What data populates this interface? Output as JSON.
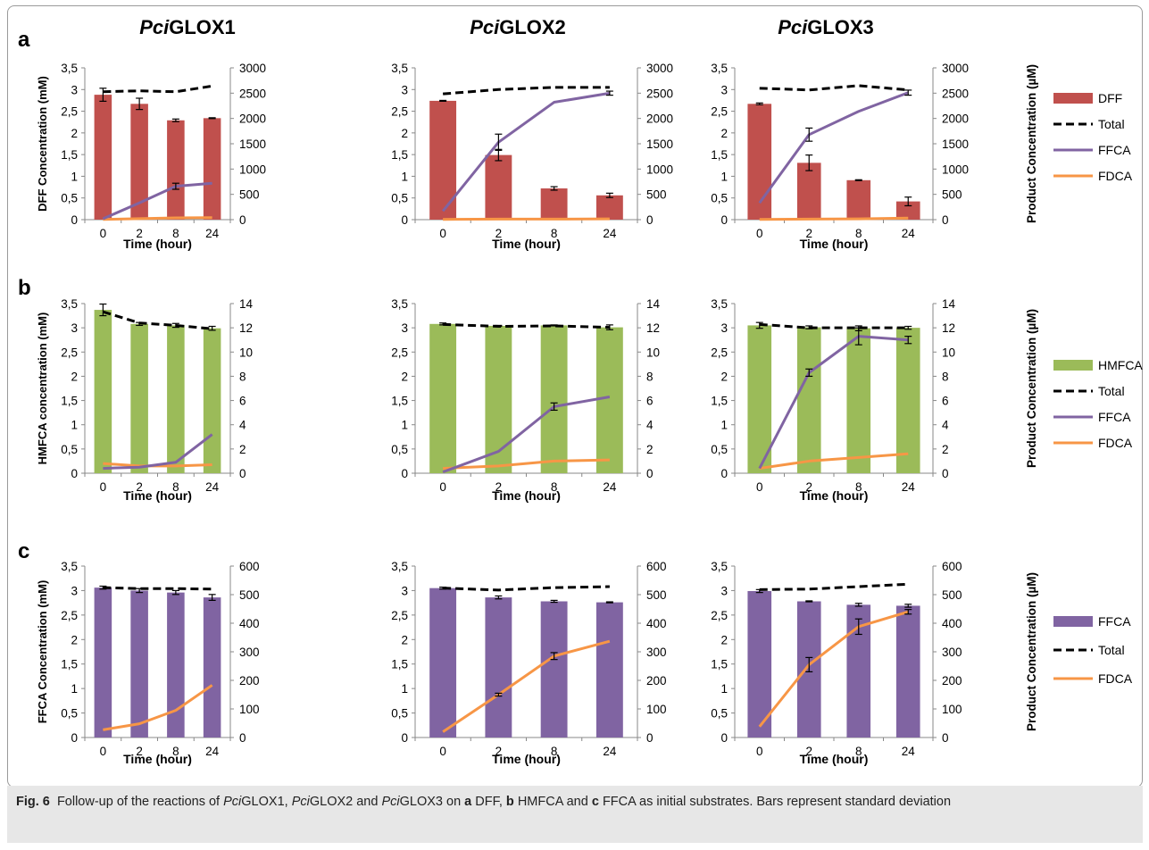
{
  "caption": {
    "fig_label": "Fig. 6",
    "text_1": "Follow-up of the reactions of",
    "enzyme_1_italic": "Pci",
    "enzyme_1_rest": "GLOX1,",
    "enzyme_2_italic": "Pci",
    "enzyme_2_rest": "GLOX2 and",
    "enzyme_3_italic": "Pci",
    "enzyme_3_rest": "GLOX3 on",
    "panel_a_letter": "a",
    "panel_a_sub": "DFF,",
    "panel_b_letter": "b",
    "panel_b_sub": "HMFCA and",
    "panel_c_letter": "c",
    "panel_c_sub": "FFCA as initial substrates. Bars represent standard deviation"
  },
  "chart_data": {
    "type": "bar",
    "colors": {
      "DFF": "#c0504d",
      "HMFCA": "#9bbb59",
      "FFCA_bar": "#8064a2",
      "Total": "#000000",
      "FFCA_line": "#8064a2",
      "FDCA": "#f79646"
    },
    "columns": [
      {
        "title_italic": "Pci",
        "title_rest": "GLOX1"
      },
      {
        "title_italic": "Pci",
        "title_rest": "GLOX2"
      },
      {
        "title_italic": "Pci",
        "title_rest": "GLOX3"
      }
    ],
    "categories": [
      "0",
      "2",
      "8",
      "24"
    ],
    "xlabel": "Time (hour)",
    "left_ticks": [
      "0",
      "0,5",
      "1",
      "1,5",
      "2",
      "2,5",
      "3",
      "3,5"
    ],
    "ylim_left": [
      0,
      3.5
    ],
    "panels": [
      {
        "letter": "a",
        "ylabel_left": "DFF Concentration (mM)",
        "ylabel_right": "Product Concentration (µM)",
        "right_ticks": [
          "0",
          "500",
          "1000",
          "1500",
          "2000",
          "2500",
          "3000"
        ],
        "ylim_right": [
          0,
          3000
        ],
        "bar_series": "DFF",
        "legend": [
          "DFF",
          "Total",
          "FFCA",
          "FDCA"
        ],
        "charts": [
          {
            "bars": [
              2.88,
              2.67,
              2.29,
              2.34
            ],
            "bar_err": [
              0.15,
              0.13,
              0.03,
              0.01
            ],
            "total": [
              2.95,
              2.97,
              2.95,
              3.08
            ],
            "FFCA": [
              18,
              330,
              660,
              720
            ],
            "FFCA_err": [
              0,
              0,
              60,
              0
            ],
            "FDCA": [
              5,
              20,
              35,
              40
            ]
          },
          {
            "bars": [
              2.74,
              1.49,
              0.72,
              0.56
            ],
            "bar_err": [
              0.01,
              0.13,
              0.04,
              0.05
            ],
            "total": [
              2.9,
              3.0,
              3.05,
              3.05
            ],
            "FFCA": [
              170,
              1530,
              2320,
              2500
            ],
            "FFCA_err": [
              0,
              160,
              0,
              40
            ],
            "FDCA": [
              5,
              10,
              10,
              15
            ]
          },
          {
            "bars": [
              2.67,
              1.31,
              0.91,
              0.42
            ],
            "bar_err": [
              0.02,
              0.18,
              0.01,
              0.1
            ],
            "total": [
              3.03,
              2.99,
              3.09,
              2.99
            ],
            "FFCA": [
              330,
              1680,
              2140,
              2510
            ],
            "FFCA_err": [
              0,
              130,
              0,
              50
            ],
            "FDCA": [
              5,
              10,
              15,
              30
            ]
          }
        ]
      },
      {
        "letter": "b",
        "ylabel_left": "HMFCA concentration (mM)",
        "ylabel_right": "Product Concentration (µM)",
        "right_ticks": [
          "0",
          "2",
          "4",
          "6",
          "8",
          "10",
          "12",
          "14"
        ],
        "ylim_right": [
          0,
          14
        ],
        "bar_series": "HMFCA",
        "legend": [
          "HMFCA",
          "Total",
          "FFCA",
          "FDCA"
        ],
        "charts": [
          {
            "bars": [
              3.37,
              3.08,
              3.05,
              2.99
            ],
            "bar_err": [
              0.12,
              0.03,
              0.04,
              0.04
            ],
            "total": [
              3.33,
              3.1,
              3.05,
              2.98
            ],
            "FFCA": [
              0.4,
              0.5,
              0.9,
              3.2
            ],
            "FFCA_err": [
              0,
              0,
              0,
              0
            ],
            "FDCA": [
              0.8,
              0.6,
              0.6,
              0.7
            ]
          },
          {
            "bars": [
              3.08,
              3.04,
              3.05,
              3.01
            ],
            "bar_err": [
              0.02,
              0.01,
              0.01,
              0.05
            ],
            "total": [
              3.07,
              3.03,
              3.04,
              3.01
            ],
            "FFCA": [
              0.1,
              1.8,
              5.5,
              6.3
            ],
            "FFCA_err": [
              0,
              0,
              0.3,
              0
            ],
            "FDCA": [
              0.4,
              0.6,
              1.0,
              1.1
            ]
          },
          {
            "bars": [
              3.05,
              3.01,
              2.99,
              3.0
            ],
            "bar_err": [
              0.06,
              0.03,
              0.05,
              0.03
            ],
            "total": [
              3.07,
              3.0,
              3.0,
              3.0
            ],
            "FFCA": [
              0.4,
              8.3,
              11.3,
              11.0
            ],
            "FFCA_err": [
              0,
              0.3,
              0.7,
              0.3
            ],
            "FDCA": [
              0.4,
              1.0,
              1.3,
              1.6
            ]
          }
        ]
      },
      {
        "letter": "c",
        "ylabel_left": "FFCA Concentration (mM)",
        "ylabel_right": "Product Concentration (µM)",
        "right_ticks": [
          "0",
          "100",
          "200",
          "300",
          "400",
          "500",
          "600"
        ],
        "ylim_right": [
          0,
          600
        ],
        "bar_series": "FFCA_bar",
        "legend": [
          "FFCA",
          "Total",
          "FDCA"
        ],
        "charts": [
          {
            "bars": [
              3.06,
              3.0,
              2.96,
              2.86
            ],
            "bar_err": [
              0.03,
              0.04,
              0.04,
              0.06
            ],
            "total": [
              3.06,
              3.04,
              3.04,
              3.03
            ],
            "FDCA": [
              27,
              48,
              95,
              183
            ],
            "FDCA_err": [
              0,
              0,
              0,
              0
            ]
          },
          {
            "bars": [
              3.05,
              2.86,
              2.78,
              2.76
            ],
            "bar_err": [
              0.02,
              0.03,
              0.02,
              0.01
            ],
            "total": [
              3.05,
              3.01,
              3.06,
              3.08
            ],
            "FDCA": [
              20,
              150,
              285,
              337
            ],
            "FDCA_err": [
              0,
              5,
              12,
              0
            ]
          },
          {
            "bars": [
              2.99,
              2.78,
              2.71,
              2.69
            ],
            "bar_err": [
              0.03,
              0.01,
              0.03,
              0.03
            ],
            "total": [
              3.02,
              3.03,
              3.08,
              3.13
            ],
            "FDCA": [
              38,
              255,
              388,
              440
            ],
            "FDCA_err": [
              0,
              25,
              27,
              8
            ]
          }
        ]
      }
    ]
  }
}
